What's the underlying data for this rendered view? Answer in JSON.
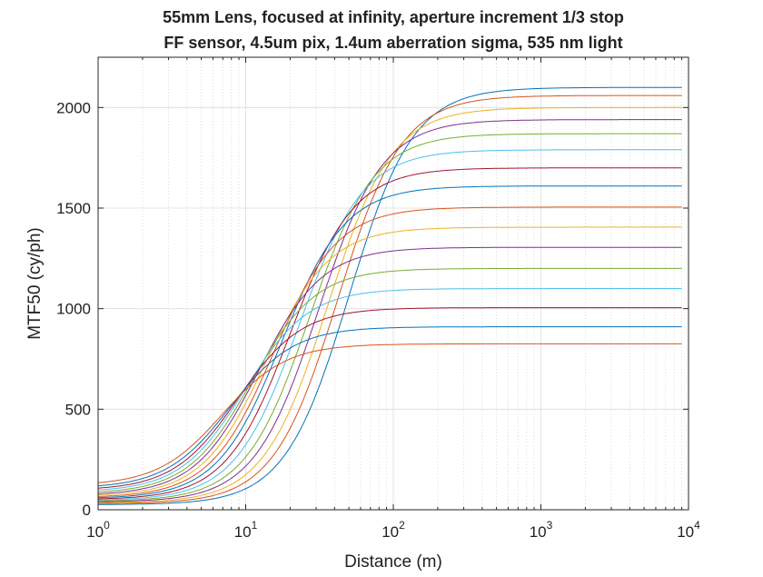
{
  "chart_data": {
    "type": "line",
    "title_lines": [
      "55mm Lens, focused at infinity, aperture increment 1/3 stop",
      "FF sensor, 4.5um pix, 1.4um aberration sigma, 535 nm light"
    ],
    "xlabel": "Distance (m)",
    "ylabel": "MTF50 (cy/ph)",
    "xscale": "log",
    "xlim": [
      1,
      10000
    ],
    "ylim": [
      0,
      2250
    ],
    "x_ticks": [
      {
        "base": "10",
        "exp": "0",
        "value": 1
      },
      {
        "base": "10",
        "exp": "1",
        "value": 10
      },
      {
        "base": "10",
        "exp": "2",
        "value": 100
      },
      {
        "base": "10",
        "exp": "3",
        "value": 1000
      },
      {
        "base": "10",
        "exp": "4",
        "value": 10000
      }
    ],
    "y_ticks": [
      "0",
      "500",
      "1000",
      "1500",
      "2000"
    ],
    "grid": true,
    "minor_grid_x": true,
    "x_range_plotted": [
      1,
      9000
    ],
    "series": [
      {
        "color": "#0072BD",
        "plateau": 2100,
        "d50": 50,
        "start": 25
      },
      {
        "color": "#D95319",
        "plateau": 2060,
        "d50": 42,
        "start": 30
      },
      {
        "color": "#EDB120",
        "plateau": 2000,
        "d50": 36,
        "start": 34
      },
      {
        "color": "#7E2F8E",
        "plateau": 1940,
        "d50": 31,
        "start": 38
      },
      {
        "color": "#77AC30",
        "plateau": 1870,
        "d50": 27,
        "start": 42
      },
      {
        "color": "#4DBEEE",
        "plateau": 1790,
        "d50": 23,
        "start": 46
      },
      {
        "color": "#A2142F",
        "plateau": 1700,
        "d50": 20,
        "start": 50
      },
      {
        "color": "#0072BD",
        "plateau": 1610,
        "d50": 17.5,
        "start": 55
      },
      {
        "color": "#D95319",
        "plateau": 1505,
        "d50": 15.5,
        "start": 60
      },
      {
        "color": "#EDB120",
        "plateau": 1405,
        "d50": 13.7,
        "start": 66
      },
      {
        "color": "#7E2F8E",
        "plateau": 1305,
        "d50": 12.2,
        "start": 72
      },
      {
        "color": "#77AC30",
        "plateau": 1200,
        "d50": 11,
        "start": 80
      },
      {
        "color": "#4DBEEE",
        "plateau": 1100,
        "d50": 9.8,
        "start": 88
      },
      {
        "color": "#A2142F",
        "plateau": 1005,
        "d50": 8.8,
        "start": 96
      },
      {
        "color": "#0072BD",
        "plateau": 910,
        "d50": 7.8,
        "start": 106
      },
      {
        "color": "#D95319",
        "plateau": 825,
        "d50": 6.9,
        "start": 120
      }
    ]
  }
}
